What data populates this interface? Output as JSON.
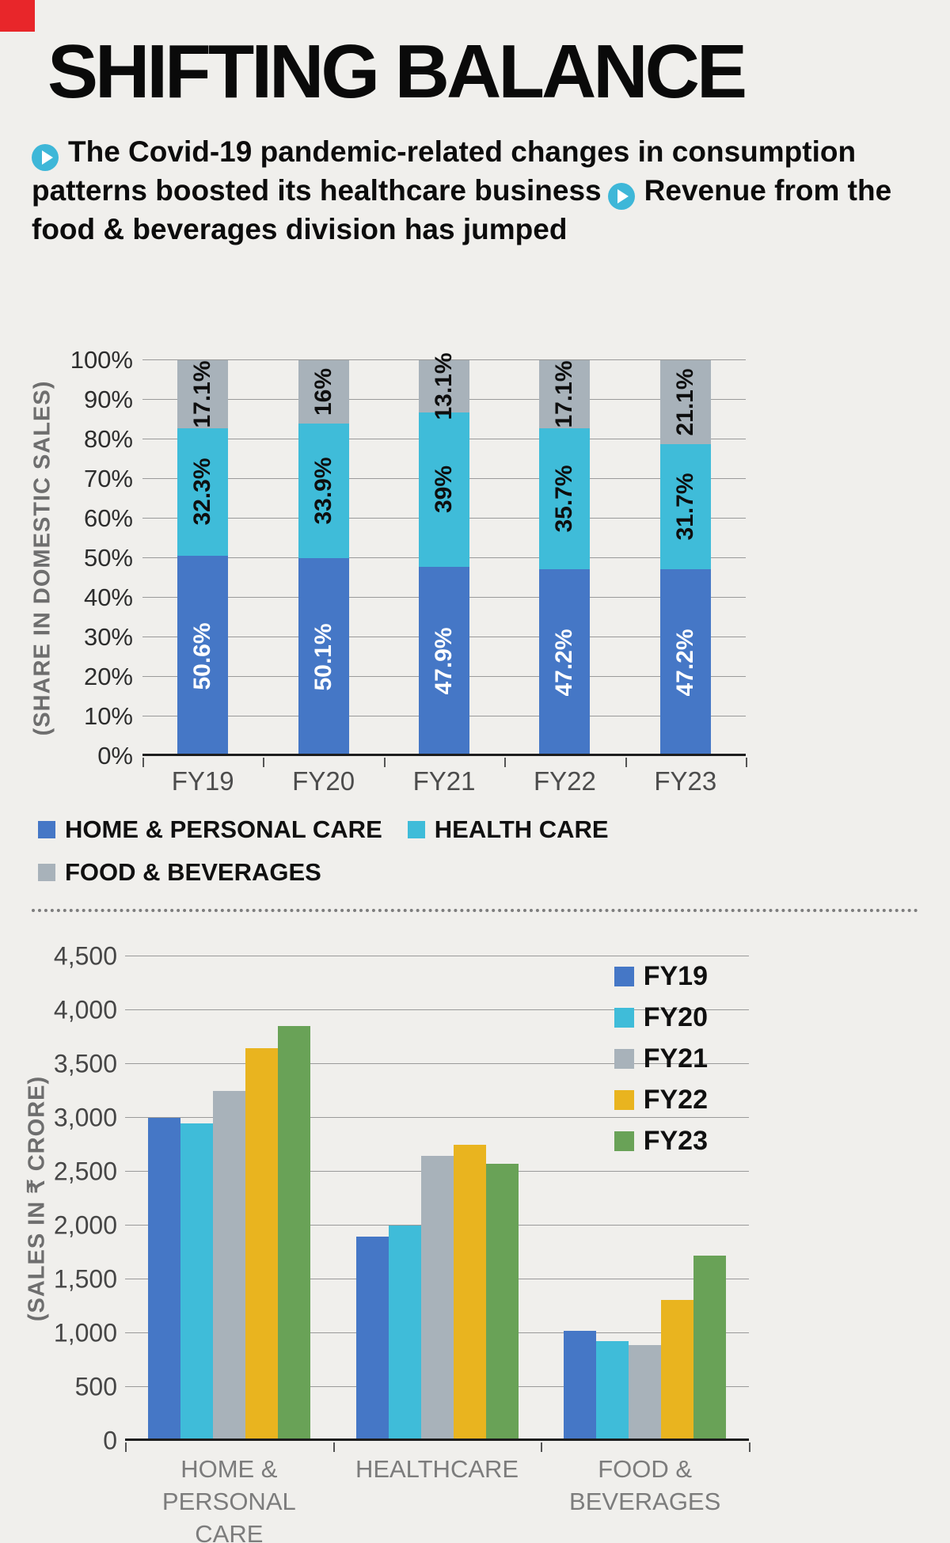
{
  "page": {
    "title": "SHIFTING BALANCE",
    "subtitle_parts": [
      "The Covid-19 pandemic-related changes in consumption patterns boosted its healthcare business",
      "Revenue from the food & beverages division has jumped"
    ]
  },
  "colors": {
    "background": "#f0efec",
    "accent": "#3eb7d8",
    "red_mark": "#e8262a",
    "blue": "#4577c6",
    "cyan": "#3fbcd9",
    "gray": "#a8b2ba",
    "yellow": "#e9b41f",
    "green": "#69a257"
  },
  "chart_data": [
    {
      "type": "bar",
      "variant": "stacked-100",
      "title": "",
      "ylabel": "(SHARE IN DOMESTIC SALES)",
      "xlabel": "",
      "ylim": [
        0,
        100
      ],
      "grid": true,
      "legend_position": "bottom",
      "yticks": [
        "0%",
        "10%",
        "20%",
        "30%",
        "40%",
        "50%",
        "60%",
        "70%",
        "80%",
        "90%",
        "100%"
      ],
      "categories": [
        "FY19",
        "FY20",
        "FY21",
        "FY22",
        "FY23"
      ],
      "series": [
        {
          "name": "HOME & PERSONAL CARE",
          "color": "blue",
          "values": [
            50.6,
            50.1,
            47.9,
            47.2,
            47.2
          ],
          "labels": [
            "50.6%",
            "50.1%",
            "47.9%",
            "47.2%",
            "47.2%"
          ]
        },
        {
          "name": "HEALTH CARE",
          "color": "cyan",
          "values": [
            32.3,
            33.9,
            39,
            35.7,
            31.7
          ],
          "labels": [
            "32.3%",
            "33.9%",
            "39%",
            "35.7%",
            "31.7%"
          ]
        },
        {
          "name": "FOOD & BEVERAGES",
          "color": "gray",
          "values": [
            17.1,
            16,
            13.1,
            17.1,
            21.1
          ],
          "labels": [
            "17.1%",
            "16%",
            "13.1%",
            "17.1%",
            "21.1%"
          ]
        }
      ]
    },
    {
      "type": "bar",
      "variant": "grouped",
      "title": "",
      "ylabel": "(SALES IN ₹ CRORE)",
      "xlabel": "",
      "ylim": [
        0,
        4500
      ],
      "grid": true,
      "legend_position": "top-right",
      "yticks": [
        "0",
        "500",
        "1,000",
        "1,500",
        "2,000",
        "2,500",
        "3,000",
        "3,500",
        "4,000",
        "4,500"
      ],
      "categories": [
        "HOME & PERSONAL CARE",
        "HEALTHCARE",
        "FOOD & BEVERAGES"
      ],
      "series": [
        {
          "name": "FY19",
          "color": "blue",
          "values": [
            3000,
            1900,
            1020
          ]
        },
        {
          "name": "FY20",
          "color": "cyan",
          "values": [
            2950,
            2000,
            930
          ]
        },
        {
          "name": "FY21",
          "color": "gray",
          "values": [
            3250,
            2650,
            890
          ]
        },
        {
          "name": "FY22",
          "color": "yellow",
          "values": [
            3650,
            2750,
            1310
          ]
        },
        {
          "name": "FY23",
          "color": "green",
          "values": [
            3850,
            2575,
            1720
          ]
        }
      ]
    }
  ]
}
